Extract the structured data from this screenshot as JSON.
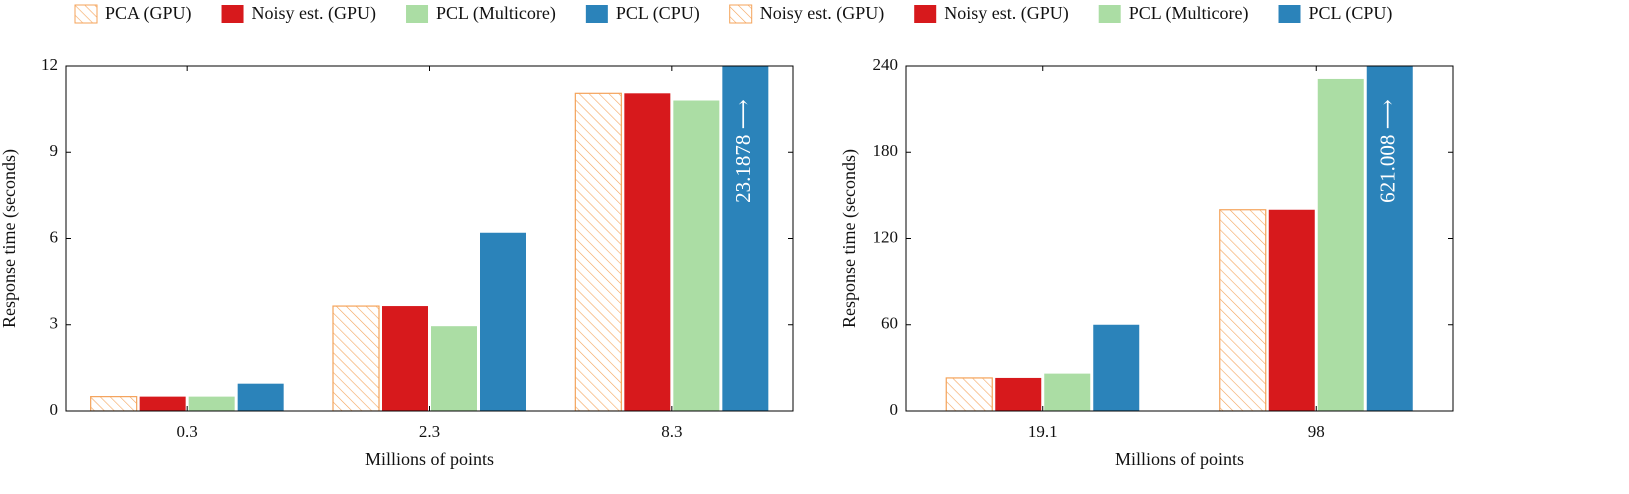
{
  "chart_data": [
    {
      "type": "bar",
      "x_label": "Millions of points",
      "y_label": "Response time (seconds)",
      "categories": [
        "0.3",
        "2.3",
        "8.3"
      ],
      "ylim": [
        0,
        12
      ],
      "yticks": [
        0,
        3,
        6,
        9,
        12
      ],
      "series": [
        {
          "name": "PCA (GPU)",
          "color": "#f4a35a",
          "hatch": true,
          "values": [
            0.5,
            3.65,
            11.05
          ]
        },
        {
          "name": "Noisy est. (GPU)",
          "color": "#d7191c",
          "values": [
            0.5,
            3.65,
            11.05
          ]
        },
        {
          "name": "PCL (Multicore)",
          "color": "#abdda4",
          "values": [
            0.5,
            2.95,
            10.8
          ]
        },
        {
          "name": "PCL (CPU)",
          "color": "#2b83ba",
          "values": [
            0.95,
            6.2,
            23.1878
          ],
          "value_labels": [
            null,
            null,
            "23.1878 ⟶"
          ]
        }
      ]
    },
    {
      "type": "bar",
      "x_label": "Millions of points",
      "y_label": "Response time (seconds)",
      "categories": [
        "19.1",
        "98"
      ],
      "ylim": [
        0,
        240
      ],
      "yticks": [
        0,
        60,
        120,
        180,
        240
      ],
      "series": [
        {
          "name": "Noisy est. (GPU)",
          "color": "#f4a35a",
          "hatch": true,
          "values": [
            23,
            140
          ]
        },
        {
          "name": "Noisy est. (GPU)",
          "color": "#d7191c",
          "values": [
            23,
            140
          ]
        },
        {
          "name": "PCL (Multicore)",
          "color": "#abdda4",
          "values": [
            26,
            231
          ]
        },
        {
          "name": "PCL (CPU)",
          "color": "#2b83ba",
          "values": [
            60,
            621.008
          ],
          "value_labels": [
            null,
            "621.008 ⟶"
          ]
        }
      ]
    }
  ]
}
